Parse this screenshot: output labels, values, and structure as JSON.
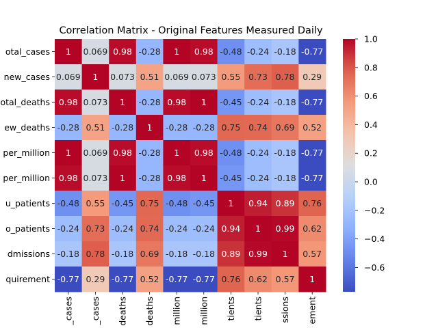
{
  "chart_data": {
    "type": "heatmap",
    "title": "Correlation Matrix - Original Features Measured Daily",
    "row_labels": [
      "otal_cases",
      "new_cases",
      "otal_deaths",
      "ew_deaths",
      "per_million",
      "per_million",
      "u_patients",
      "o_patients",
      "dmissions",
      "quirement"
    ],
    "col_labels": [
      "_cases",
      "_cases",
      "deaths",
      "deaths",
      "million",
      "million",
      "tients",
      "tients",
      "ssions",
      "ement"
    ],
    "values": [
      [
        "1",
        "0.069",
        "0.98",
        "-0.28",
        "1",
        "0.98",
        "-0.48",
        "-0.24",
        "-0.18",
        "-0.77"
      ],
      [
        "0.069",
        "1",
        "0.073",
        "0.51",
        "0.069",
        "0.073",
        "0.55",
        "0.73",
        "0.78",
        "0.29"
      ],
      [
        "0.98",
        "0.073",
        "1",
        "-0.28",
        "0.98",
        "1",
        "-0.45",
        "-0.24",
        "-0.18",
        "-0.77"
      ],
      [
        "-0.28",
        "0.51",
        "-0.28",
        "1",
        "-0.28",
        "-0.28",
        "0.75",
        "0.74",
        "0.69",
        "0.52"
      ],
      [
        "1",
        "0.069",
        "0.98",
        "-0.28",
        "1",
        "0.98",
        "-0.48",
        "-0.24",
        "-0.18",
        "-0.77"
      ],
      [
        "0.98",
        "0.073",
        "1",
        "-0.28",
        "0.98",
        "1",
        "-0.45",
        "-0.24",
        "-0.18",
        "-0.77"
      ],
      [
        "-0.48",
        "0.55",
        "-0.45",
        "0.75",
        "-0.48",
        "-0.45",
        "1",
        "0.94",
        "0.89",
        "0.76"
      ],
      [
        "-0.24",
        "0.73",
        "-0.24",
        "0.74",
        "-0.24",
        "-0.24",
        "0.94",
        "1",
        "0.99",
        "0.62"
      ],
      [
        "-0.18",
        "0.78",
        "-0.18",
        "0.69",
        "-0.18",
        "-0.18",
        "0.89",
        "0.99",
        "1",
        "0.57"
      ],
      [
        "-0.77",
        "0.29",
        "-0.77",
        "0.52",
        "-0.77",
        "-0.77",
        "0.76",
        "0.62",
        "0.57",
        "1"
      ]
    ],
    "colormap": "coolwarm",
    "colorbar": {
      "vmin": -0.77,
      "vmax": 1.0,
      "ticks": [
        "1.0",
        "0.8",
        "0.6",
        "0.4",
        "0.2",
        "0.0",
        "−0.2",
        "−0.4",
        "−0.6"
      ],
      "tick_values": [
        1.0,
        0.8,
        0.6,
        0.4,
        0.2,
        0.0,
        -0.2,
        -0.4,
        -0.6
      ]
    }
  }
}
